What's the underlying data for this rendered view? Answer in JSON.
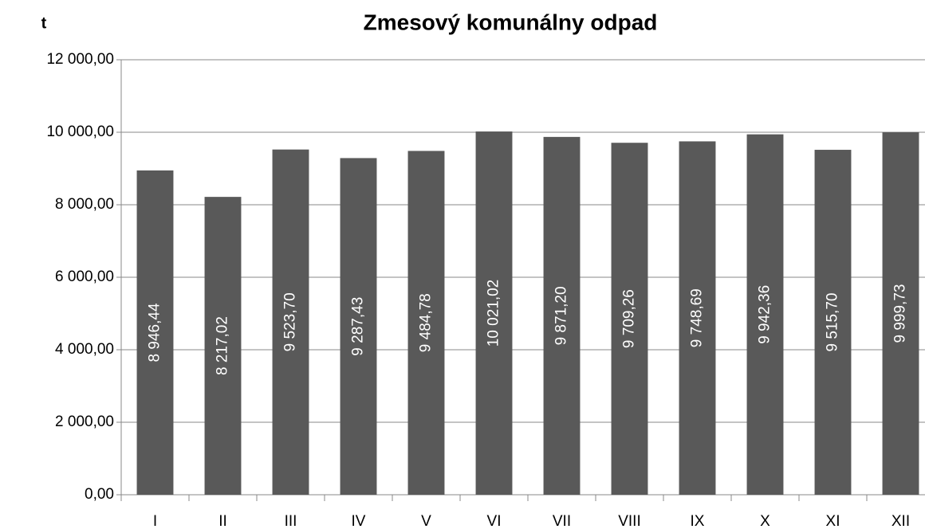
{
  "chart_data": {
    "type": "bar",
    "title": "Zmesový komunálny odpad",
    "y_label": "t",
    "categories": [
      "I",
      "II",
      "III",
      "IV",
      "V",
      "VI",
      "VII",
      "VIII",
      "IX",
      "X",
      "XI",
      "XII"
    ],
    "values": [
      8946.44,
      8217.02,
      9523.7,
      9287.43,
      9484.78,
      10021.02,
      9871.2,
      9709.26,
      9748.69,
      9942.36,
      9515.7,
      9999.73
    ],
    "value_labels": [
      "8 946,44",
      "8 217,02",
      "9 523,70",
      "9 287,43",
      "9 484,78",
      "10 021,02",
      "9 871,20",
      "9 709,26",
      "9 748,69",
      "9 942,36",
      "9 515,70",
      "9 999,73"
    ],
    "color": "#595959",
    "ylim": [
      0,
      12000
    ],
    "yticks": [
      {
        "value": 0,
        "label": "0,00"
      },
      {
        "value": 2000,
        "label": "2 000,00"
      },
      {
        "value": 4000,
        "label": "4 000,00"
      },
      {
        "value": 6000,
        "label": "6 000,00"
      },
      {
        "value": 8000,
        "label": "8 000,00"
      },
      {
        "value": 10000,
        "label": "10 000,00"
      },
      {
        "value": 12000,
        "label": "12 000,00"
      }
    ],
    "grid": true
  }
}
